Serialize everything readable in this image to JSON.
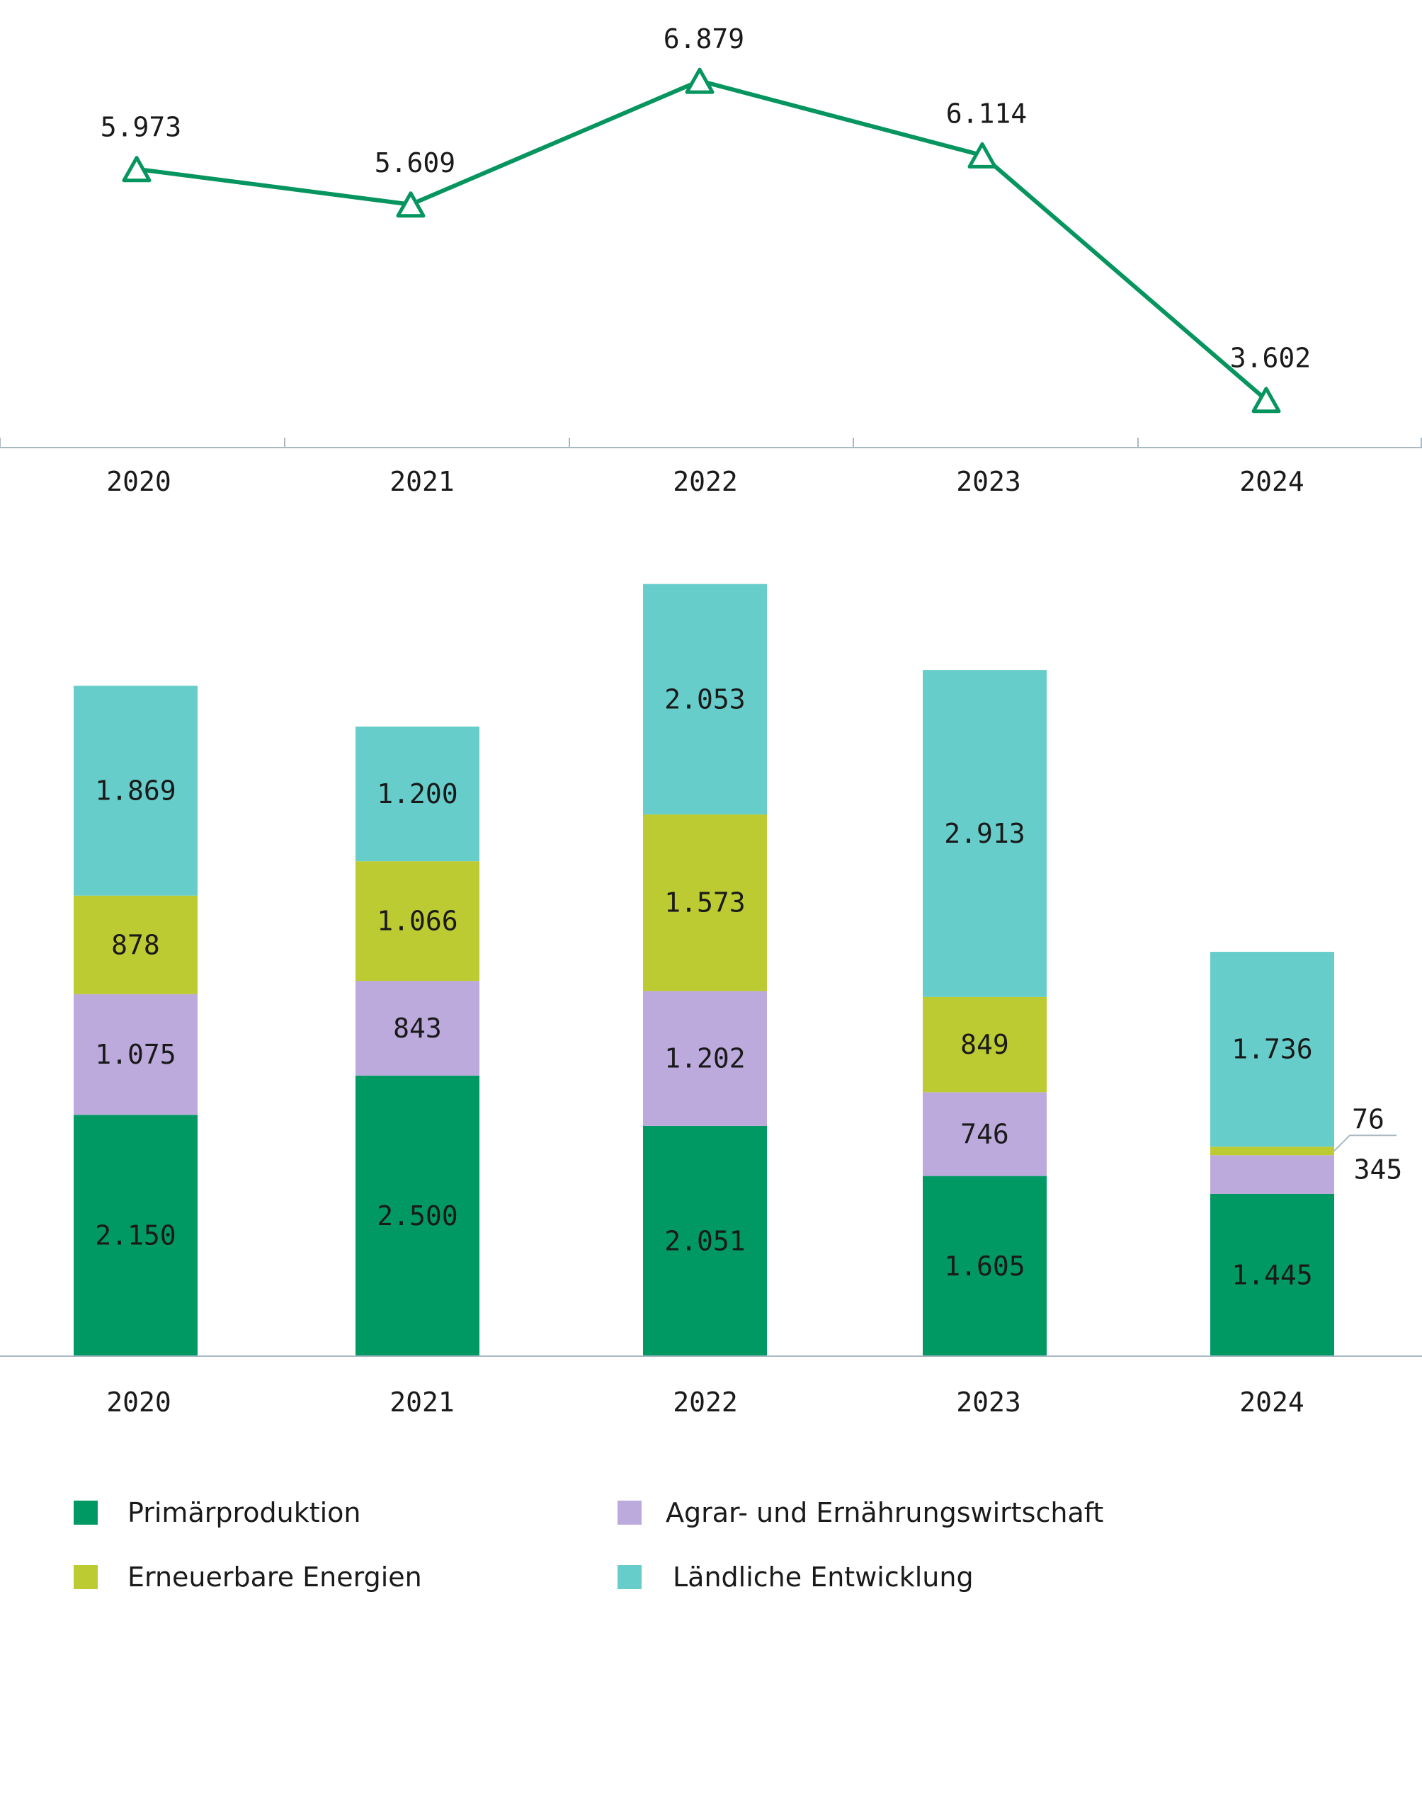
{
  "colors": {
    "line": "#06955f",
    "axis": "#a9b9c4",
    "text": "#1a1a1a",
    "Primärproduktion": "#009963",
    "Agrar- und Ernährungswirtschaft": "#bcaadd",
    "Erneuerbare Energien": "#bccb31",
    "Ländliche Entwicklung": "#66cdcb"
  },
  "chart_data": [
    {
      "type": "line",
      "title": "",
      "x": [
        "2020",
        "2021",
        "2022",
        "2023",
        "2024"
      ],
      "series": [
        {
          "values": [
            5973,
            5609,
            6879,
            6114,
            3602
          ],
          "labels": [
            "5.973",
            "5.609",
            "6.879",
            "6.114",
            "3.602"
          ],
          "marker": "triangle"
        }
      ],
      "xlabel": "",
      "ylabel": "",
      "grid": false
    },
    {
      "type": "bar",
      "stacked": true,
      "title": "",
      "categories": [
        "2020",
        "2021",
        "2022",
        "2023",
        "2024"
      ],
      "series": [
        {
          "name": "Primärproduktion",
          "values": [
            2150,
            2500,
            2051,
            1605,
            1445
          ],
          "labels": [
            "2.150",
            "2.500",
            "2.051",
            "1.605",
            "1.445"
          ]
        },
        {
          "name": "Agrar- und Ernährungswirtschaft",
          "values": [
            1075,
            843,
            1202,
            746,
            345
          ],
          "labels": [
            "1.075",
            "843",
            "1.202",
            "746",
            "345"
          ]
        },
        {
          "name": "Erneuerbare Energien",
          "values": [
            878,
            1066,
            1573,
            849,
            76
          ],
          "labels": [
            "878",
            "1.066",
            "1.573",
            "849",
            "76"
          ]
        },
        {
          "name": "Ländliche Entwicklung",
          "values": [
            1869,
            1200,
            2053,
            2913,
            1736
          ],
          "labels": [
            "1.869",
            "1.200",
            "2.053",
            "2.913",
            "1.736"
          ]
        }
      ],
      "xlabel": "",
      "ylabel": "",
      "grid": false,
      "legend": "bottom"
    }
  ],
  "legend": {
    "items": [
      {
        "label": "Primärproduktion",
        "color": "#009963"
      },
      {
        "label": "Agrar- und Ernährungswirtschaft",
        "color": "#bcaadd"
      },
      {
        "label": "Erneuerbare Energien",
        "color": "#bccb31"
      },
      {
        "label": "Ländliche Entwicklung",
        "color": "#66cdcb"
      }
    ]
  }
}
